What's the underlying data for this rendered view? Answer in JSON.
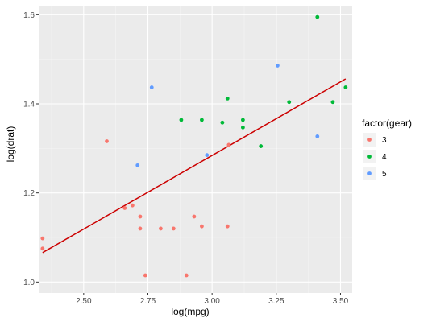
{
  "chart_data": {
    "type": "scatter",
    "xlabel": "log(mpg)",
    "ylabel": "log(drat)",
    "xlim": [
      2.3248,
      3.5456
    ],
    "ylim": [
      0.9753,
      1.6205
    ],
    "x_ticks": [
      2.5,
      2.75,
      3.0,
      3.25,
      3.5
    ],
    "x_tick_labels": [
      "2.50",
      "2.75",
      "3.00",
      "3.25",
      "3.50"
    ],
    "y_ticks": [
      1.0,
      1.2,
      1.4,
      1.6
    ],
    "y_tick_labels": [
      "1.0",
      "1.2",
      "1.4",
      "1.6"
    ],
    "grid": true,
    "legend": {
      "title": "factor(gear)",
      "position": "right",
      "entries": [
        {
          "label": "3",
          "color": "#F8766D"
        },
        {
          "label": "4",
          "color": "#00BA38"
        },
        {
          "label": "5",
          "color": "#619CFF"
        }
      ]
    },
    "series": [
      {
        "name": "3",
        "color": "#F8766D",
        "x": [
          2.34,
          2.34,
          2.59,
          2.66,
          2.69,
          2.72,
          2.72,
          2.74,
          2.8,
          2.85,
          2.9,
          2.93,
          2.96,
          3.06,
          3.065
        ],
        "y": [
          1.098,
          1.075,
          1.316,
          1.166,
          1.172,
          1.147,
          1.12,
          1.015,
          1.12,
          1.12,
          1.015,
          1.147,
          1.125,
          1.125,
          1.308
        ]
      },
      {
        "name": "4",
        "color": "#00BA38",
        "x": [
          2.88,
          2.96,
          3.04,
          3.06,
          3.12,
          3.12,
          3.19,
          3.3,
          3.41,
          3.47,
          3.52
        ],
        "y": [
          1.364,
          1.364,
          1.358,
          1.412,
          1.364,
          1.347,
          1.305,
          1.404,
          1.595,
          1.404,
          1.437
        ]
      },
      {
        "name": "5",
        "color": "#619CFF",
        "x": [
          2.71,
          2.765,
          2.98,
          3.255,
          3.41
        ],
        "y": [
          1.262,
          1.437,
          1.285,
          1.486,
          1.327
        ]
      }
    ],
    "fit_line": {
      "color": "#CC0000",
      "x": [
        2.34,
        3.52
      ],
      "y": [
        1.066,
        1.456
      ]
    }
  }
}
